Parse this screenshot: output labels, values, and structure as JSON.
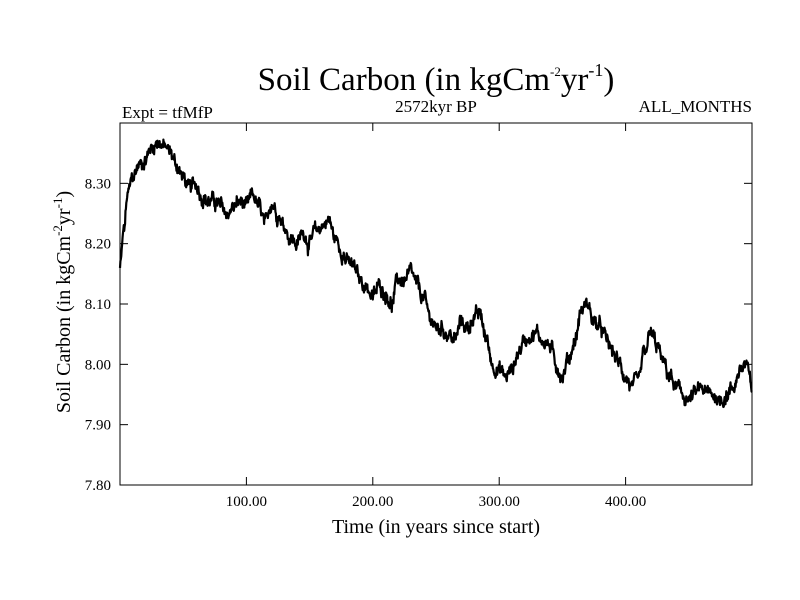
{
  "chart_data": {
    "type": "line",
    "title": "Soil Carbon (in kgCm",
    "title_exp1": "-2",
    "title_mid": "yr",
    "title_exp2": "-1",
    "title_end": ")",
    "left_label": "Expt = tfMfP",
    "center_label": "2572kyr BP",
    "right_label": "ALL_MONTHS",
    "xlabel": "Time (in years since start)",
    "ylabel": "Soil Carbon (in kgCm",
    "ylabel_exp1": "-2",
    "ylabel_mid": "yr",
    "ylabel_exp2": "-1",
    "ylabel_end": ")",
    "xlim": [
      0,
      500
    ],
    "ylim": [
      7.8,
      8.4
    ],
    "xticks": [
      100,
      200,
      300,
      400
    ],
    "xtick_labels": [
      "100.00",
      "200.00",
      "300.00",
      "400.00"
    ],
    "yticks": [
      7.8,
      7.9,
      8.0,
      8.1,
      8.2,
      8.3
    ],
    "ytick_labels": [
      "7.80",
      "7.90",
      "8.00",
      "8.10",
      "8.20",
      "8.30"
    ],
    "series": [
      {
        "name": "Soil Carbon",
        "color": "#000000",
        "anchors_x": [
          0,
          3,
          6,
          10,
          15,
          20,
          25,
          30,
          35,
          40,
          45,
          50,
          55,
          60,
          65,
          70,
          75,
          80,
          85,
          90,
          95,
          100,
          105,
          110,
          115,
          120,
          125,
          130,
          135,
          140,
          145,
          150,
          155,
          160,
          165,
          170,
          175,
          180,
          185,
          190,
          195,
          200,
          205,
          210,
          215,
          220,
          225,
          230,
          235,
          240,
          245,
          250,
          255,
          260,
          265,
          270,
          275,
          280,
          285,
          290,
          295,
          300,
          305,
          310,
          315,
          320,
          325,
          330,
          335,
          340,
          345,
          350,
          355,
          360,
          365,
          370,
          375,
          380,
          385,
          390,
          395,
          400,
          405,
          410,
          415,
          420,
          425,
          430,
          435,
          440,
          445,
          450,
          455,
          460,
          465,
          470,
          475,
          480,
          485,
          490,
          495,
          500
        ],
        "anchors_y": [
          8.16,
          8.22,
          8.28,
          8.31,
          8.33,
          8.34,
          8.36,
          8.37,
          8.36,
          8.35,
          8.33,
          8.31,
          8.29,
          8.3,
          8.28,
          8.27,
          8.27,
          8.26,
          8.25,
          8.26,
          8.27,
          8.26,
          8.28,
          8.26,
          8.23,
          8.27,
          8.25,
          8.23,
          8.21,
          8.2,
          8.22,
          8.2,
          8.22,
          8.23,
          8.24,
          8.21,
          8.19,
          8.17,
          8.16,
          8.14,
          8.13,
          8.11,
          8.13,
          8.12,
          8.1,
          8.14,
          8.14,
          8.15,
          8.13,
          8.11,
          8.08,
          8.06,
          8.06,
          8.05,
          8.04,
          8.07,
          8.06,
          8.08,
          8.08,
          8.04,
          8.0,
          7.99,
          7.98,
          7.99,
          8.02,
          8.04,
          8.05,
          8.05,
          8.04,
          8.03,
          8.0,
          7.98,
          8.01,
          8.04,
          8.09,
          8.1,
          8.07,
          8.06,
          8.04,
          8.02,
          8.0,
          7.98,
          7.96,
          7.97,
          8.02,
          8.05,
          8.03,
          8.0,
          7.98,
          7.96,
          7.95,
          7.94,
          7.95,
          7.96,
          7.95,
          7.95,
          7.94,
          7.95,
          7.96,
          7.99,
          8.0,
          7.96
        ]
      }
    ]
  }
}
